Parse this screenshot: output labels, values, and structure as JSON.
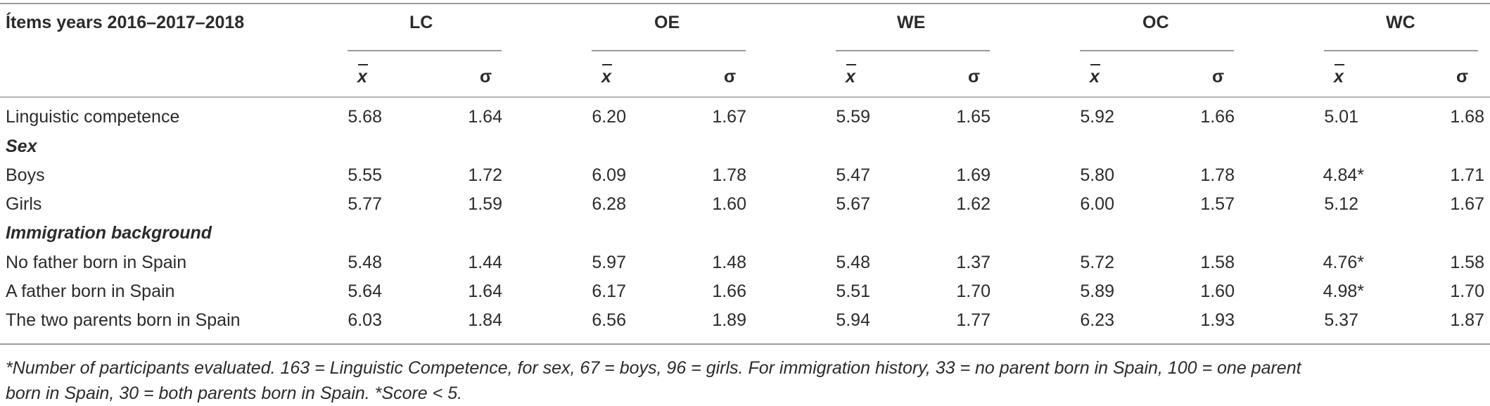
{
  "table": {
    "corner_header": "Ítems years 2016–2017–2018",
    "groups": [
      "LC",
      "OE",
      "WE",
      "OC",
      "WC"
    ],
    "sub_mean": "x",
    "sub_sd": "σ",
    "rows": [
      {
        "type": "data",
        "label": "Linguistic competence",
        "values": [
          "5.68",
          "1.64",
          "6.20",
          "1.67",
          "5.59",
          "1.65",
          "5.92",
          "1.66",
          "5.01",
          "1.68"
        ]
      },
      {
        "type": "section",
        "label": "Sex"
      },
      {
        "type": "data",
        "label": "Boys",
        "values": [
          "5.55",
          "1.72",
          "6.09",
          "1.78",
          "5.47",
          "1.69",
          "5.80",
          "1.78",
          "4.84*",
          "1.71"
        ]
      },
      {
        "type": "data",
        "label": "Girls",
        "values": [
          "5.77",
          "1.59",
          "6.28",
          "1.60",
          "5.67",
          "1.62",
          "6.00",
          "1.57",
          "5.12",
          "1.67"
        ]
      },
      {
        "type": "section",
        "label": "Immigration background"
      },
      {
        "type": "data",
        "label": "No father born in Spain",
        "values": [
          "5.48",
          "1.44",
          "5.97",
          "1.48",
          "5.48",
          "1.37",
          "5.72",
          "1.58",
          "4.76*",
          "1.58"
        ]
      },
      {
        "type": "data",
        "label": "A father born in Spain",
        "values": [
          "5.64",
          "1.64",
          "6.17",
          "1.66",
          "5.51",
          "1.70",
          "5.89",
          "1.60",
          "4.98*",
          "1.70"
        ]
      },
      {
        "type": "data",
        "label": "The two parents born in Spain",
        "values": [
          "6.03",
          "1.84",
          "6.56",
          "1.89",
          "5.94",
          "1.77",
          "6.23",
          "1.93",
          "5.37",
          "1.87"
        ]
      }
    ]
  },
  "footnote": {
    "line1": "*Number of participants evaluated. 163 = Linguistic Competence, for sex, 67 = boys, 96 = girls. For immigration history, 33 = no parent born in Spain, 100 = one parent",
    "line2": "born in Spain, 30 = both parents born in Spain. *Score < 5."
  }
}
